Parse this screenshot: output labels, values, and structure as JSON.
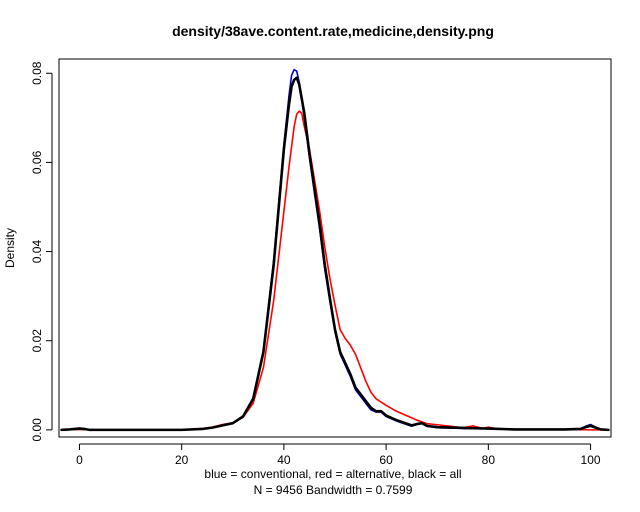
{
  "chart_data": {
    "type": "line",
    "title": "density/38ave.content.rate,medicine,density.png",
    "xlabel_line1": "blue = conventional, red = alternative, black = all",
    "xlabel_line2": "N = 9456   Bandwidth = 0.7599",
    "ylabel": "Density",
    "xlim": [
      -4,
      104
    ],
    "ylim": [
      -0.0016,
      0.0832
    ],
    "x_ticks": [
      0,
      20,
      40,
      60,
      80,
      100
    ],
    "x_tick_labels": [
      "0",
      "20",
      "40",
      "60",
      "80",
      "100"
    ],
    "y_ticks": [
      0.0,
      0.02,
      0.04,
      0.06,
      0.08
    ],
    "y_tick_labels": [
      "0.00",
      "0.02",
      "0.04",
      "0.06",
      "0.08"
    ],
    "grid": false,
    "series": [
      {
        "name": "alternative",
        "color": "#ff0000",
        "points": [
          [
            -3.5,
            0
          ],
          [
            0,
            0.0001
          ],
          [
            2,
            0
          ],
          [
            10,
            0
          ],
          [
            20,
            0
          ],
          [
            24,
            0.0003
          ],
          [
            26,
            0.0006
          ],
          [
            28,
            0.0012
          ],
          [
            30,
            0.0016
          ],
          [
            32,
            0.0028
          ],
          [
            34,
            0.006
          ],
          [
            36,
            0.014
          ],
          [
            38,
            0.029
          ],
          [
            39,
            0.039
          ],
          [
            40,
            0.049
          ],
          [
            41,
            0.059
          ],
          [
            42,
            0.068
          ],
          [
            42.5,
            0.0708
          ],
          [
            43,
            0.0715
          ],
          [
            43.5,
            0.071
          ],
          [
            44,
            0.068
          ],
          [
            45,
            0.063
          ],
          [
            46,
            0.056
          ],
          [
            47,
            0.049
          ],
          [
            48,
            0.041
          ],
          [
            49,
            0.034
          ],
          [
            50,
            0.028
          ],
          [
            51,
            0.0225
          ],
          [
            52,
            0.0205
          ],
          [
            53,
            0.019
          ],
          [
            54,
            0.017
          ],
          [
            55,
            0.014
          ],
          [
            56,
            0.011
          ],
          [
            57,
            0.0085
          ],
          [
            58,
            0.007
          ],
          [
            60,
            0.0055
          ],
          [
            62,
            0.0042
          ],
          [
            64,
            0.0032
          ],
          [
            66,
            0.0022
          ],
          [
            68,
            0.0014
          ],
          [
            72,
            0.0009
          ],
          [
            75,
            0.0005
          ],
          [
            77,
            0.0009
          ],
          [
            79,
            0.0003
          ],
          [
            80,
            0.0006
          ],
          [
            82,
            0.0002
          ],
          [
            88,
            0.0001
          ],
          [
            95,
            0.0001
          ],
          [
            100,
            0.0
          ],
          [
            103.5,
            0
          ]
        ]
      },
      {
        "name": "conventional",
        "color": "#0000cc",
        "points": [
          [
            -3.5,
            0
          ],
          [
            -2,
            0.0001
          ],
          [
            0,
            0.0004
          ],
          [
            1,
            0.0002
          ],
          [
            2,
            0
          ],
          [
            10,
            0
          ],
          [
            20,
            0
          ],
          [
            24,
            0.0002
          ],
          [
            26,
            0.0005
          ],
          [
            28,
            0.001
          ],
          [
            30,
            0.0015
          ],
          [
            32,
            0.003
          ],
          [
            34,
            0.007
          ],
          [
            36,
            0.018
          ],
          [
            38,
            0.038
          ],
          [
            39,
            0.051
          ],
          [
            40,
            0.064
          ],
          [
            41,
            0.075
          ],
          [
            41.5,
            0.0795
          ],
          [
            42,
            0.0808
          ],
          [
            42.5,
            0.0805
          ],
          [
            43,
            0.078
          ],
          [
            44,
            0.07
          ],
          [
            45,
            0.061
          ],
          [
            46,
            0.053
          ],
          [
            47,
            0.045
          ],
          [
            48,
            0.036
          ],
          [
            49,
            0.029
          ],
          [
            50,
            0.022
          ],
          [
            51,
            0.017
          ],
          [
            52,
            0.0145
          ],
          [
            53,
            0.012
          ],
          [
            54,
            0.009
          ],
          [
            55,
            0.0075
          ],
          [
            56,
            0.006
          ],
          [
            57,
            0.0045
          ],
          [
            58,
            0.004
          ],
          [
            59,
            0.004
          ],
          [
            60,
            0.003
          ],
          [
            62,
            0.002
          ],
          [
            64,
            0.0012
          ],
          [
            65,
            0.0008
          ],
          [
            66,
            0.0012
          ],
          [
            67,
            0.0015
          ],
          [
            68,
            0.0008
          ],
          [
            70,
            0.0005
          ],
          [
            76,
            0.0003
          ],
          [
            80,
            0.0003
          ],
          [
            85,
            0.0001
          ],
          [
            95,
            0.0001
          ],
          [
            98,
            0.0002
          ],
          [
            99,
            0.0008
          ],
          [
            100,
            0.0012
          ],
          [
            101,
            0.0006
          ],
          [
            102,
            0.0001
          ],
          [
            103.5,
            0
          ]
        ]
      },
      {
        "name": "all",
        "color": "#000000",
        "points": [
          [
            -3.5,
            0
          ],
          [
            -2,
            0.0001
          ],
          [
            0,
            0.0003
          ],
          [
            1,
            0.0002
          ],
          [
            2,
            0
          ],
          [
            10,
            0
          ],
          [
            20,
            0
          ],
          [
            24,
            0.0002
          ],
          [
            26,
            0.0005
          ],
          [
            28,
            0.001
          ],
          [
            30,
            0.0015
          ],
          [
            32,
            0.003
          ],
          [
            34,
            0.007
          ],
          [
            36,
            0.0175
          ],
          [
            38,
            0.037
          ],
          [
            39,
            0.05
          ],
          [
            40,
            0.063
          ],
          [
            41,
            0.073
          ],
          [
            41.5,
            0.077
          ],
          [
            42,
            0.0785
          ],
          [
            42.5,
            0.079
          ],
          [
            43,
            0.0775
          ],
          [
            44,
            0.071
          ],
          [
            45,
            0.062
          ],
          [
            46,
            0.054
          ],
          [
            47,
            0.046
          ],
          [
            48,
            0.037
          ],
          [
            49,
            0.0295
          ],
          [
            50,
            0.0225
          ],
          [
            51,
            0.0175
          ],
          [
            52,
            0.015
          ],
          [
            53,
            0.0125
          ],
          [
            54,
            0.0095
          ],
          [
            55,
            0.008
          ],
          [
            56,
            0.0065
          ],
          [
            57,
            0.005
          ],
          [
            58,
            0.0042
          ],
          [
            59,
            0.0042
          ],
          [
            60,
            0.0032
          ],
          [
            62,
            0.0022
          ],
          [
            64,
            0.0014
          ],
          [
            65,
            0.001
          ],
          [
            66,
            0.0013
          ],
          [
            67,
            0.0015
          ],
          [
            68,
            0.0009
          ],
          [
            70,
            0.0006
          ],
          [
            76,
            0.0004
          ],
          [
            80,
            0.0003
          ],
          [
            85,
            0.0001
          ],
          [
            95,
            0.0001
          ],
          [
            98,
            0.0002
          ],
          [
            99,
            0.0006
          ],
          [
            100,
            0.0009
          ],
          [
            101,
            0.0005
          ],
          [
            102,
            0.0001
          ],
          [
            103.5,
            0
          ]
        ]
      }
    ]
  }
}
